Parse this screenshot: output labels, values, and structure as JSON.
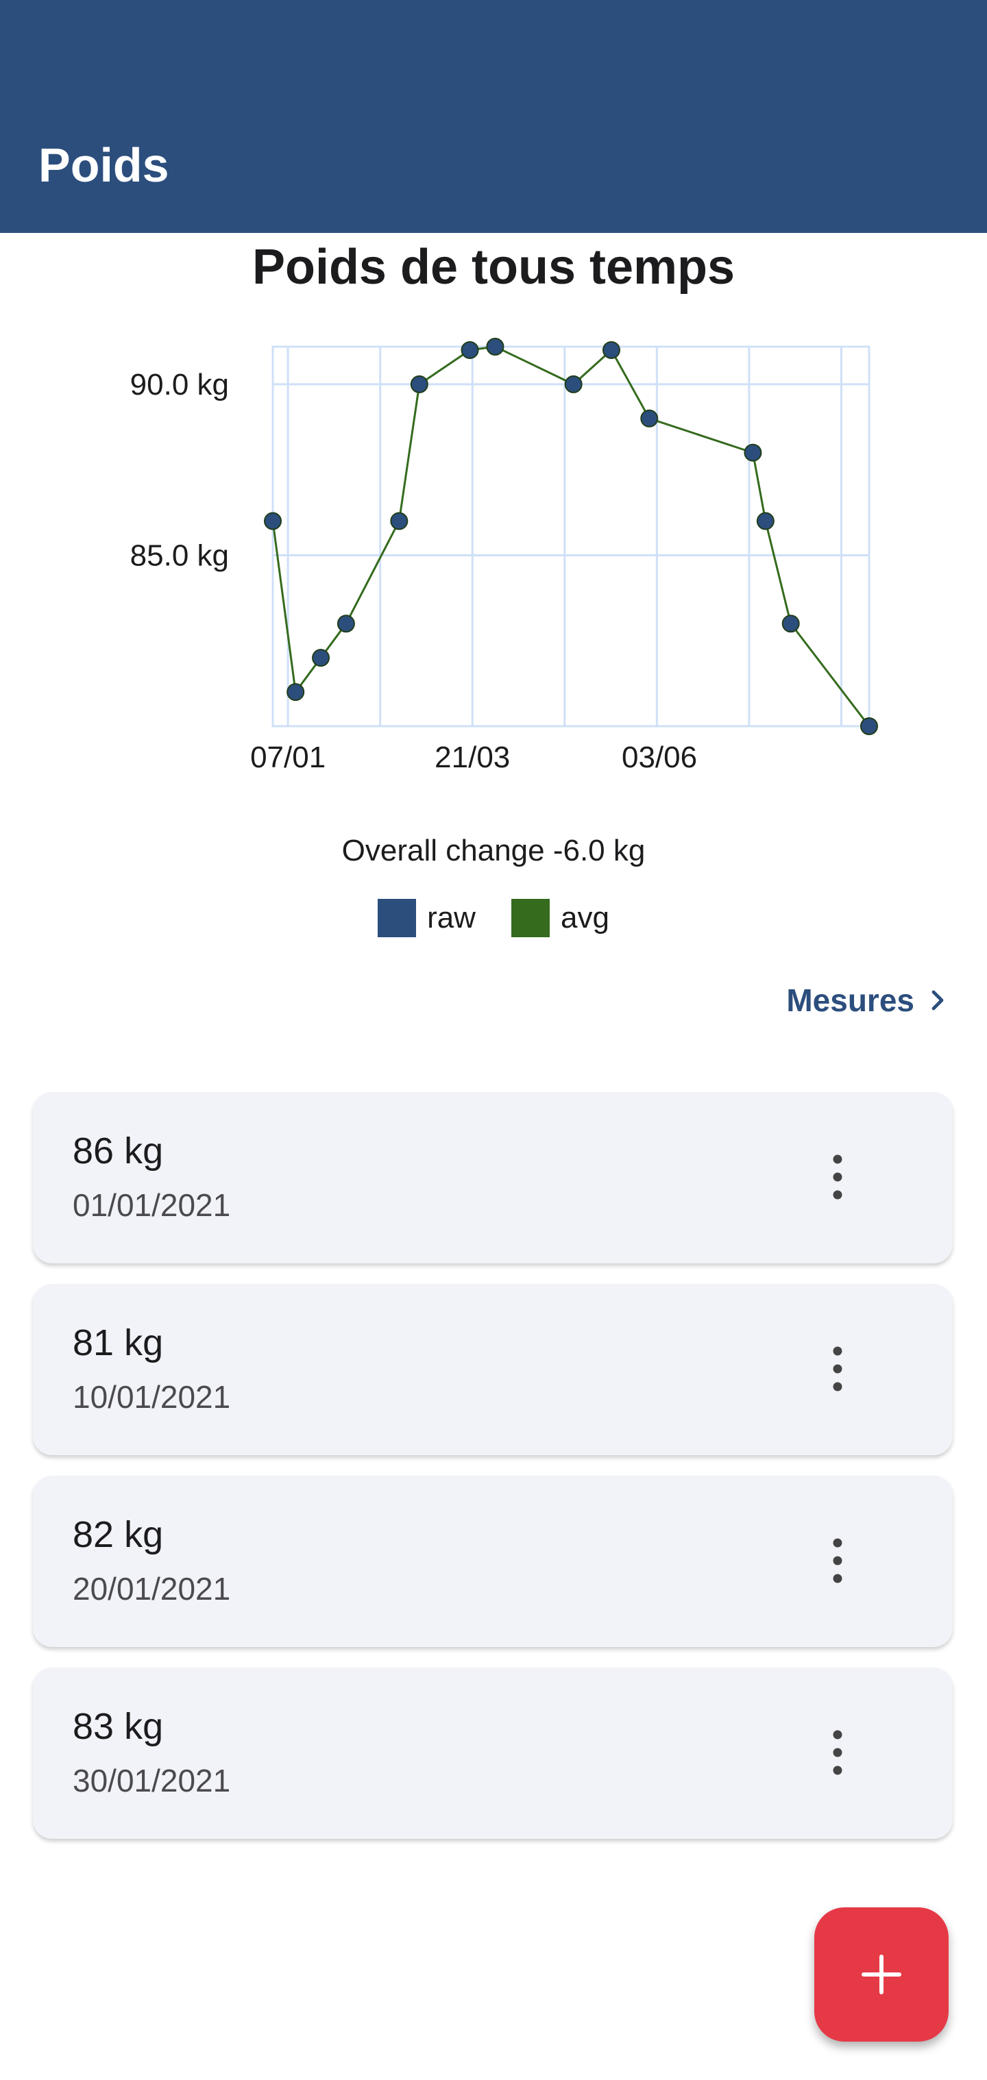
{
  "app_bar": {
    "title": "Poids",
    "color": "#2c4e7d"
  },
  "chart_title": "Poids de tous temps",
  "chart_data": {
    "type": "line",
    "title": "Poids de tous temps",
    "y_tick_labels": [
      "90.0 kg",
      "85.0 kg"
    ],
    "y_ticks": [
      90,
      85
    ],
    "x_tick_labels": [
      "07/01",
      "21/03",
      "03/06"
    ],
    "x_ticks": [
      "2021-01-07",
      "2021-03-21",
      "2021-06-03"
    ],
    "x_range": [
      "2021-01-01",
      "2021-08-25"
    ],
    "ylim": [
      80,
      91.1
    ],
    "grid": true,
    "legend_position": "bottom-center",
    "series": [
      {
        "name": "raw",
        "color": "#2c4e7d",
        "x": [
          "2021-01-01",
          "2021-01-10",
          "2021-01-20",
          "2021-01-30",
          "2021-02-20",
          "2021-02-28",
          "2021-03-20",
          "2021-03-30",
          "2021-04-30",
          "2021-05-15",
          "2021-05-30",
          "2021-07-10",
          "2021-07-15",
          "2021-07-25",
          "2021-08-25"
        ],
        "values": [
          86,
          81,
          82,
          83,
          86,
          90,
          91,
          91.1,
          90,
          91,
          89,
          88,
          86,
          83,
          80
        ]
      },
      {
        "name": "avg",
        "color": "#346b1d",
        "x": [
          "2021-01-01",
          "2021-01-10",
          "2021-01-20",
          "2021-01-30",
          "2021-02-20",
          "2021-02-28",
          "2021-03-20",
          "2021-03-30",
          "2021-04-30",
          "2021-05-15",
          "2021-05-30",
          "2021-07-10",
          "2021-07-15",
          "2021-07-25",
          "2021-08-25"
        ],
        "values": [
          86,
          81,
          82,
          83,
          86,
          90,
          91,
          91.1,
          90,
          91,
          89,
          88,
          86,
          83,
          80
        ]
      }
    ]
  },
  "overall_change": "Overall change -6.0 kg",
  "legend": [
    {
      "label": "raw",
      "color": "#2c4e7d"
    },
    {
      "label": "avg",
      "color": "#346b1d"
    }
  ],
  "mesures_link": {
    "label": "Mesures",
    "icon": "chevron-right-icon"
  },
  "entries": [
    {
      "weight": "86 kg",
      "date": "01/01/2021",
      "icon": "more-vertical-icon"
    },
    {
      "weight": "81 kg",
      "date": "10/01/2021",
      "icon": "more-vertical-icon"
    },
    {
      "weight": "82 kg",
      "date": "20/01/2021",
      "icon": "more-vertical-icon"
    },
    {
      "weight": "83 kg",
      "date": "30/01/2021",
      "icon": "more-vertical-icon"
    }
  ],
  "fab": {
    "icon": "plus-icon",
    "color": "#e63946"
  }
}
